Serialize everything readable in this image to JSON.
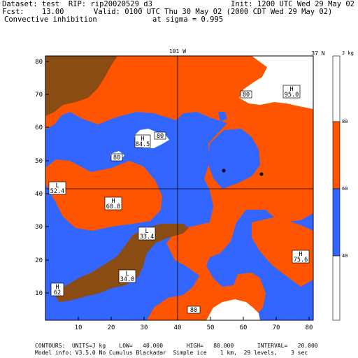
{
  "header": {
    "dataset": "Dataset: test  RIP: rip20020529_d3",
    "init": "Init: 1200 UTC Wed 29 May 02",
    "fcst": "Fcst:    13.00",
    "valid": "Valid: 0100 UTC Thu 30 May 02 (2000 CDT Wed 29 May 02)",
    "field": "Convective inhibition",
    "sigma": "at sigma = 0.995"
  },
  "map": {
    "top_label": "101 W",
    "right_label": "37 N",
    "x_ticks": [
      "10",
      "20",
      "30",
      "40",
      "50",
      "60",
      "70",
      "80"
    ],
    "y_ticks": [
      "10",
      "20",
      "30",
      "40",
      "50",
      "60",
      "70",
      "80"
    ]
  },
  "colorbar": {
    "unit": "J kg",
    "labels": [
      "80",
      "60",
      "40"
    ],
    "colors": {
      "white": "#ffffff",
      "orange": "#ff5500",
      "blue": "#3366ff",
      "brown": "#8b4c14"
    }
  },
  "annotations": [
    {
      "letter": "H",
      "value": "95.0"
    },
    {
      "letter": "",
      "value": "80"
    },
    {
      "letter": "H",
      "value": "84.5"
    },
    {
      "letter": "",
      "value": "80"
    },
    {
      "letter": "",
      "value": "80"
    },
    {
      "letter": "L",
      "value": "52.4"
    },
    {
      "letter": "H",
      "value": "60.8"
    },
    {
      "letter": "L",
      "value": "33.4"
    },
    {
      "letter": "H",
      "value": "75.6"
    },
    {
      "letter": "L",
      "value": "34.0"
    },
    {
      "letter": "H",
      "value": "62"
    },
    {
      "letter": "",
      "value": "80"
    }
  ],
  "footer": {
    "contours": "CONTOURS:  UNITS=J kg    LOW=   40.000       HIGH=   80.000       INTERVAL=   20.000",
    "model": "Model info: V3.5.0 No Cumulus Blackadar  Simple ice    1 km,  29 levels,    3 sec"
  }
}
